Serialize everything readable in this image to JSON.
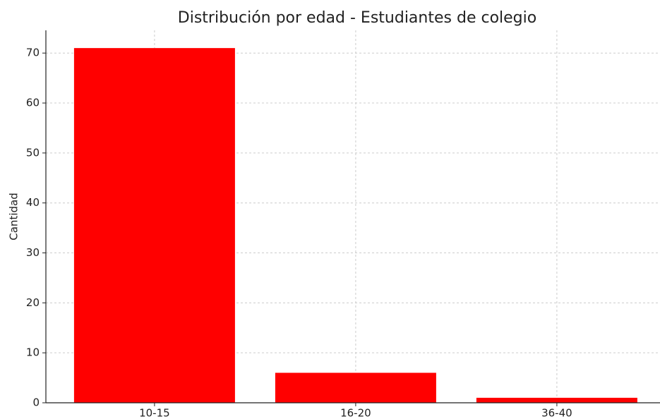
{
  "chart_data": {
    "type": "bar",
    "title": "Distribución por edad - Estudiantes de colegio",
    "ylabel": "Cantidad",
    "categories": [
      "10-15",
      "16-20",
      "36-40"
    ],
    "values": [
      71,
      6,
      1
    ],
    "color": "#ff0000",
    "ylim": [
      0,
      74.55
    ],
    "yticks": [
      0,
      10,
      20,
      30,
      40,
      50,
      60,
      70
    ],
    "grid": true
  }
}
